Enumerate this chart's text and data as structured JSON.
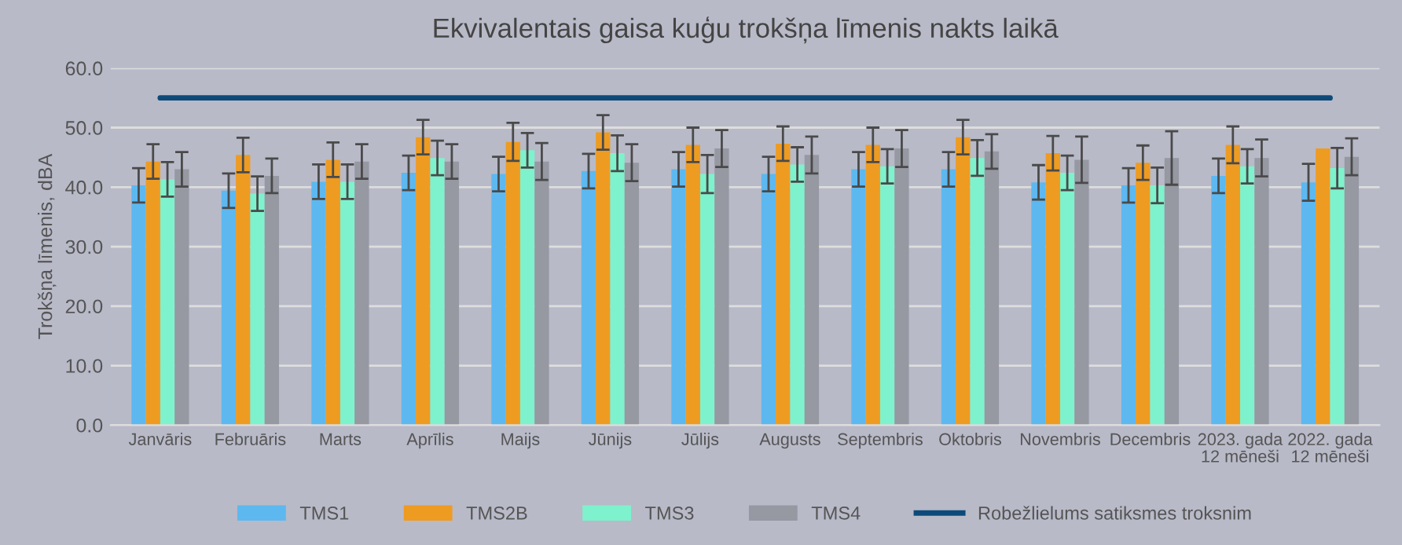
{
  "chart_data": {
    "type": "bar",
    "title": "Ekvivalentais gaisa kuģu trokšņa līmenis nakts laikā",
    "ylabel": "Trokšņa līmenis, dBA",
    "categories": [
      "Janvāris",
      "Februāris",
      "Marts",
      "Aprīlis",
      "Maijs",
      "Jūnijs",
      "Jūlijs",
      "Augusts",
      "Septembris",
      "Oktobris",
      "Novembris",
      "Decembris",
      "2023. gada\n12 mēneši",
      "2022. gada\n12 mēneši"
    ],
    "series": [
      {
        "name": "TMS1",
        "color": "#5db8f0",
        "values": [
          40.3,
          39.4,
          40.9,
          42.4,
          42.2,
          42.7,
          43.0,
          42.2,
          43.0,
          43.0,
          40.8,
          40.3,
          41.9,
          40.8
        ],
        "errors": [
          2.9,
          2.9,
          2.9,
          2.9,
          2.9,
          2.9,
          2.9,
          2.9,
          2.9,
          2.9,
          2.9,
          2.9,
          2.9,
          3.1
        ]
      },
      {
        "name": "TMS2B",
        "color": "#ee9b22",
        "values": [
          44.3,
          45.4,
          44.6,
          48.4,
          47.6,
          49.2,
          47.1,
          47.3,
          47.1,
          48.4,
          45.7,
          44.1,
          47.1,
          46.5
        ],
        "errors": [
          2.9,
          2.9,
          2.9,
          2.9,
          3.2,
          2.9,
          2.9,
          2.9,
          2.9,
          2.9,
          2.9,
          2.9,
          3.1,
          null
        ]
      },
      {
        "name": "TMS3",
        "color": "#7ef2cc",
        "values": [
          41.3,
          38.9,
          40.9,
          44.9,
          46.2,
          45.7,
          42.2,
          43.8,
          43.5,
          44.9,
          42.4,
          40.3,
          43.5,
          43.2
        ],
        "errors": [
          2.9,
          2.9,
          2.9,
          2.9,
          2.9,
          3.0,
          3.2,
          2.9,
          2.9,
          3.0,
          2.9,
          3.0,
          2.9,
          3.4
        ]
      },
      {
        "name": "TMS4",
        "color": "#9698a2",
        "values": [
          43.0,
          41.9,
          44.3,
          44.3,
          44.3,
          44.1,
          46.5,
          45.4,
          46.5,
          46.0,
          44.6,
          44.9,
          44.9,
          45.1
        ],
        "errors": [
          2.9,
          2.9,
          2.9,
          2.9,
          3.1,
          3.1,
          3.1,
          3.1,
          3.1,
          2.9,
          3.9,
          4.5,
          3.1,
          3.1
        ]
      },
      {
        "name": "Robežlielums satiksmes troksnim",
        "type": "line",
        "color": "#0d4a7a",
        "values": [
          55,
          55,
          55,
          55,
          55,
          55,
          55,
          55,
          55,
          55,
          55,
          55,
          55,
          55
        ]
      }
    ],
    "ylim": [
      0,
      60
    ],
    "yticks": [
      {
        "value": 0,
        "label": "0.0"
      },
      {
        "value": 10,
        "label": "10.0"
      },
      {
        "value": 20,
        "label": "20.0"
      },
      {
        "value": 30,
        "label": "30.0"
      },
      {
        "value": 40,
        "label": "40.0"
      },
      {
        "value": 50,
        "label": "50.0"
      },
      {
        "value": 60,
        "label": "60.0"
      }
    ],
    "grid": "y",
    "legend": "bottom"
  }
}
